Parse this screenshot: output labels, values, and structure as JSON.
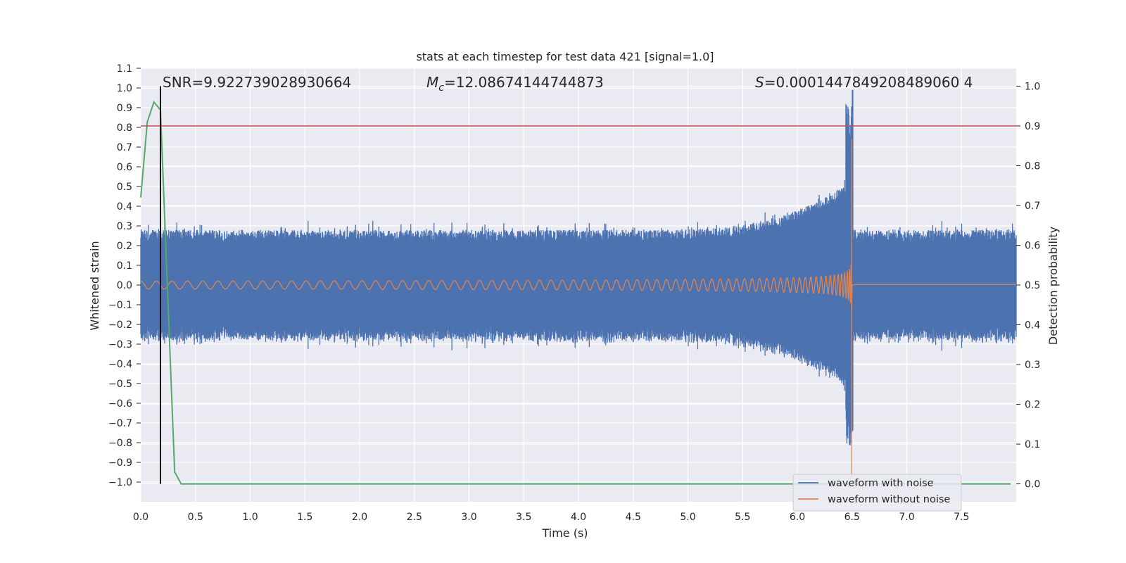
{
  "chart_data": {
    "type": "line",
    "title": "stats at each timestep for test data 421 [signal=1.0]",
    "xlabel": "Time (s)",
    "ylabel": "Whitened strain",
    "y2label": "Detection probability",
    "xlim": [
      0.0,
      8.0
    ],
    "ylim": [
      -1.1,
      1.1
    ],
    "y2lim": [
      -0.045,
      1.045
    ],
    "grid": true,
    "x_ticks": [
      "0.0",
      "0.5",
      "1.0",
      "1.5",
      "2.0",
      "2.5",
      "3.0",
      "3.5",
      "4.0",
      "4.5",
      "5.0",
      "5.5",
      "6.0",
      "6.5",
      "7.0",
      "7.5"
    ],
    "y_ticks": [
      "1.1",
      "1.0",
      "0.9",
      "0.8",
      "0.7",
      "0.6",
      "0.5",
      "0.4",
      "0.3",
      "0.2",
      "0.1",
      "0.0",
      "−0.1",
      "−0.2",
      "−0.3",
      "−0.4",
      "−0.5",
      "−0.6",
      "−0.7",
      "−0.8",
      "−0.9",
      "−1.0"
    ],
    "y2_ticks": [
      "1.0",
      "0.9",
      "0.8",
      "0.7",
      "0.6",
      "0.5",
      "0.4",
      "0.3",
      "0.2",
      "0.1",
      "0.0"
    ],
    "annotations": {
      "snr": "SNR=9.922739028930664",
      "mc_symbol": "M",
      "mc_sub": "c",
      "mc_value": "=12.08674144744873",
      "s_symbol": "S",
      "s_value": "=0.0001447849208489060 4"
    },
    "legend": {
      "position": "lower-right",
      "entries": [
        "waveform with noise",
        "waveform without noise"
      ]
    },
    "colors": {
      "noise": "#4c72b0",
      "clean": "#dd8452",
      "probability": "#55a868",
      "threshold": "#c44e52",
      "marker": "#000000",
      "background": "#eaeaf2",
      "grid": "#ffffff"
    },
    "series": [
      {
        "name": "waveform with noise",
        "axis": "left",
        "envelope": {
          "base_amplitude": 0.25,
          "merger_time": 6.5,
          "peak_positive": 0.99,
          "peak_negative": -0.74,
          "post_merger_amplitude": 0.24
        }
      },
      {
        "name": "waveform without noise",
        "axis": "left",
        "chirp": {
          "start_amplitude": 0.02,
          "start_frequency": 14,
          "merger_time": 6.5,
          "peak_positive": 0.74,
          "peak_negative": -0.98,
          "post_merger_offset": 0.003
        }
      },
      {
        "name": "detection probability",
        "axis": "right",
        "x": [
          0.0,
          0.06,
          0.12,
          0.18,
          0.31,
          0.37,
          0.5,
          1.0,
          2.0,
          3.0,
          4.0,
          5.0,
          6.0,
          7.0,
          7.95
        ],
        "y": [
          0.72,
          0.91,
          0.96,
          0.94,
          0.03,
          0.0,
          0.0,
          0.0,
          0.0,
          0.0,
          0.0,
          0.0,
          0.0,
          0.0,
          0.0
        ]
      }
    ],
    "threshold_line": {
      "axis": "right",
      "y": 0.9
    },
    "vertical_marker": {
      "x": 0.18,
      "ymin": 0.0,
      "ymax": 1.0,
      "axis": "right"
    }
  }
}
